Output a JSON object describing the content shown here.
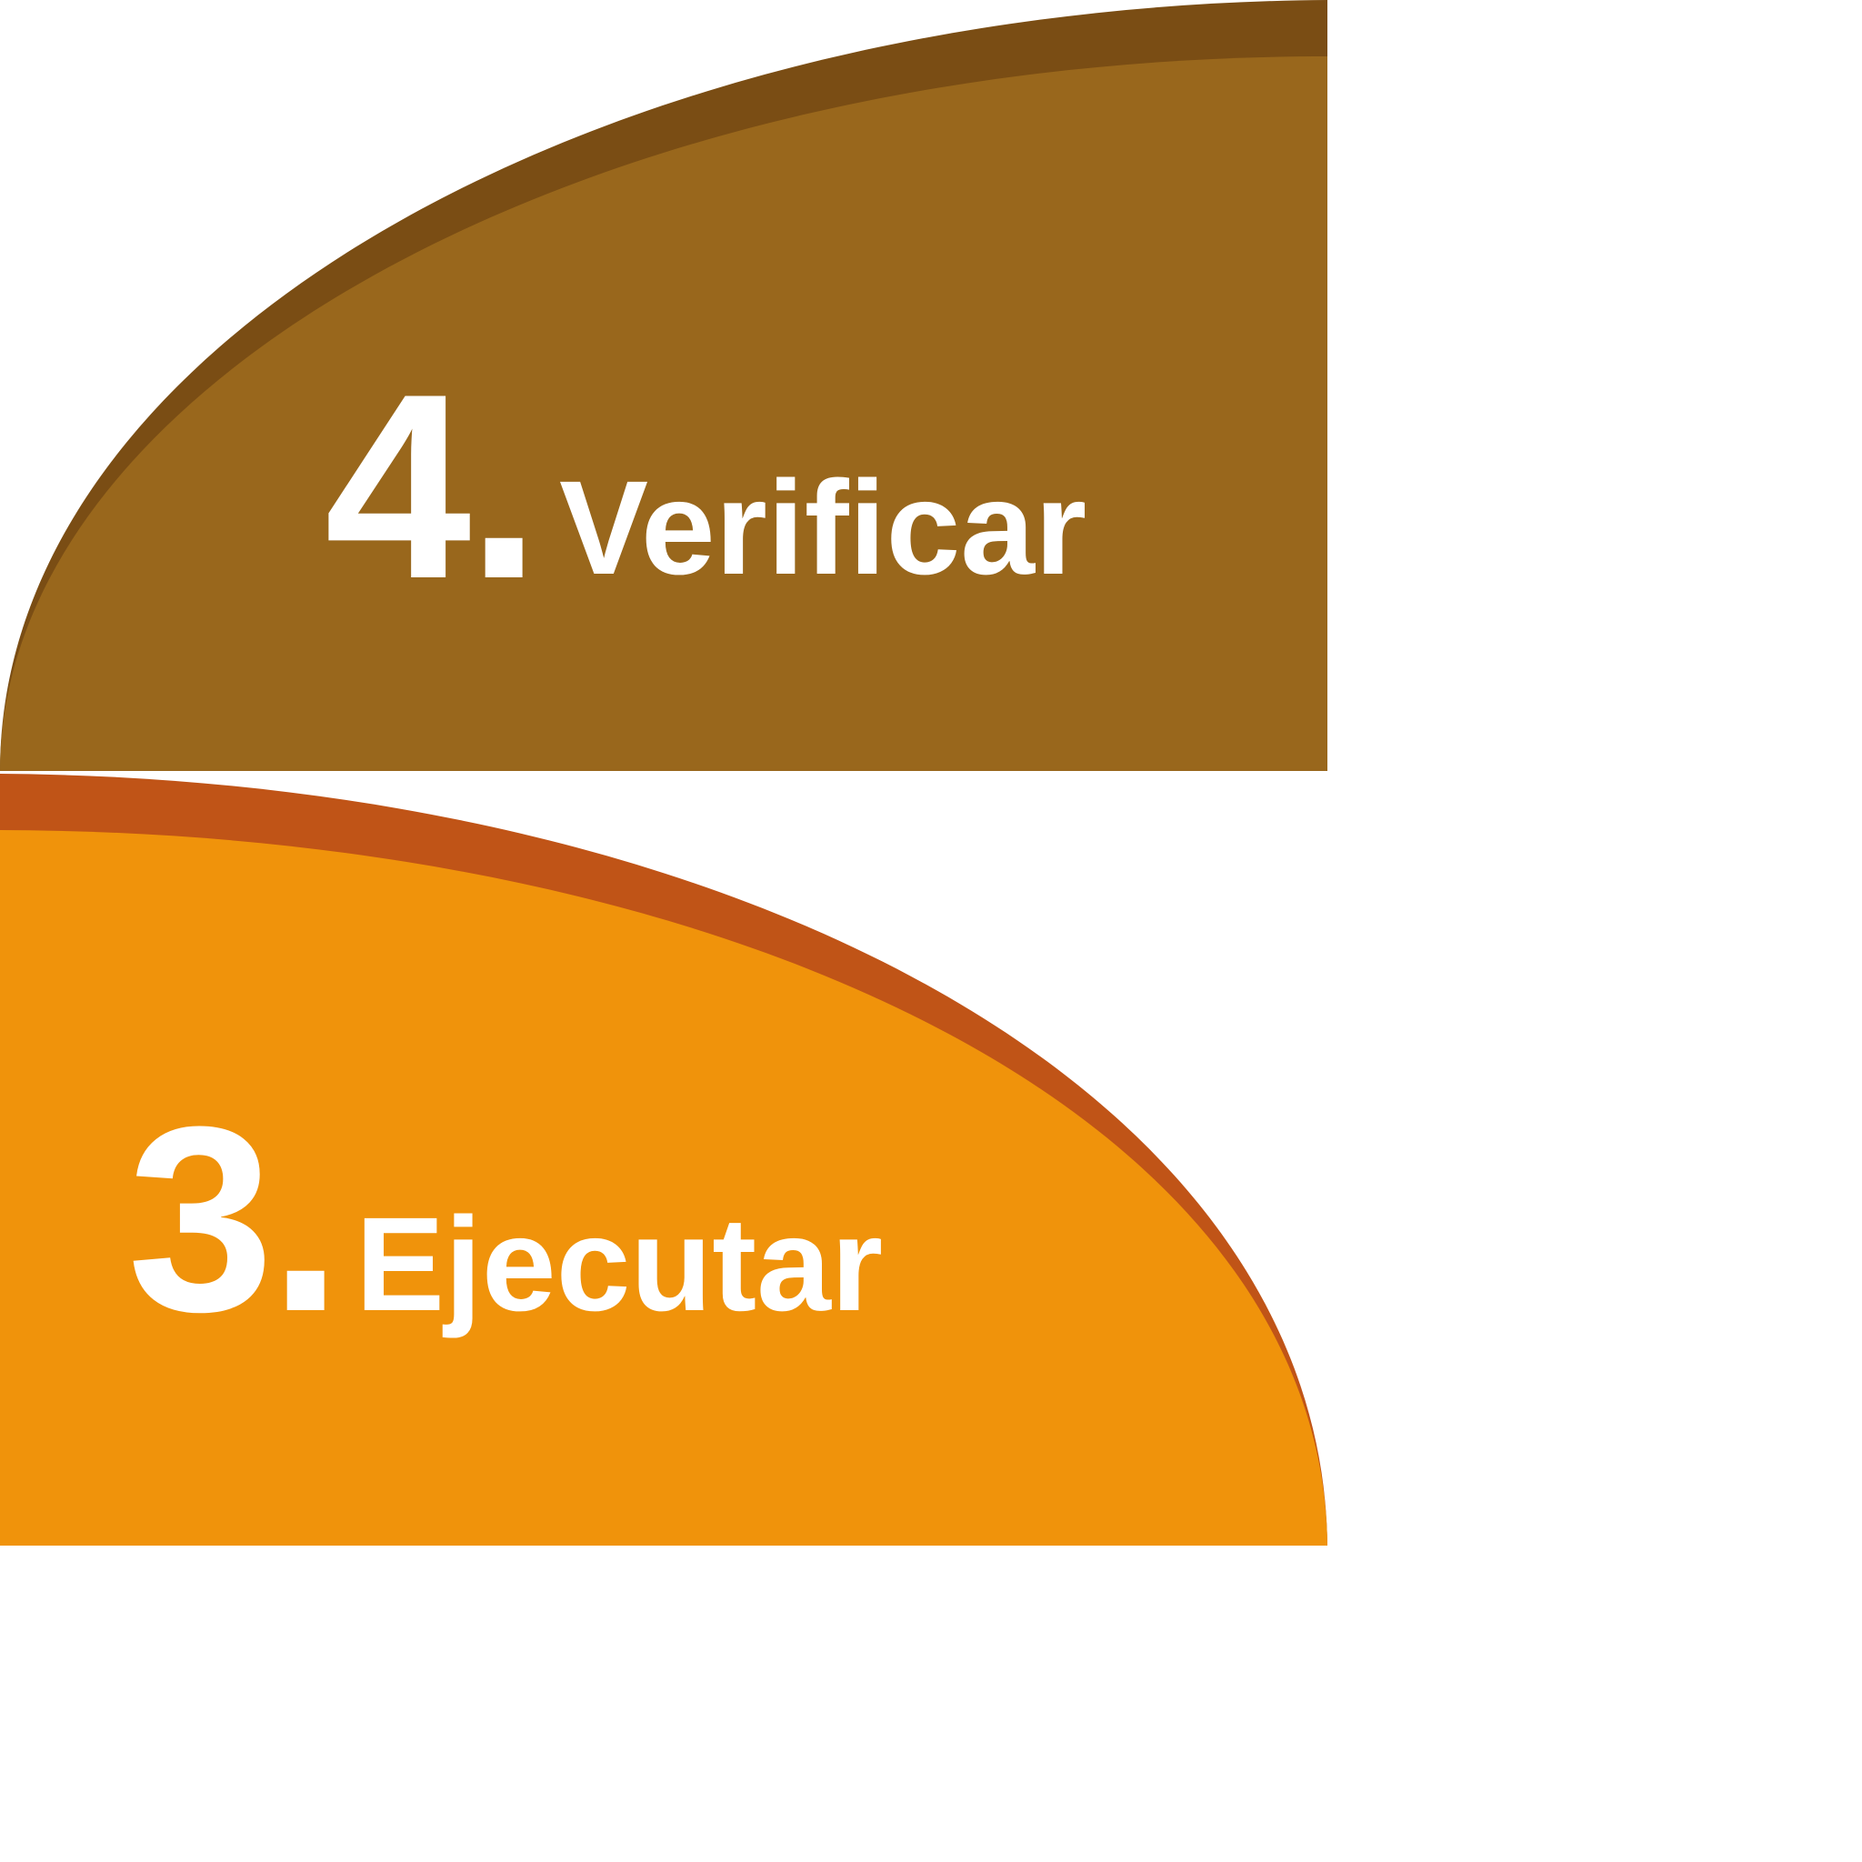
{
  "steps": [
    {
      "number": "4",
      "dot": ".",
      "label": "Verificar",
      "colors": {
        "fill": "#99671C",
        "shadow": "#7A4D14"
      }
    },
    {
      "number": "3",
      "dot": ".",
      "label": "Ejecutar",
      "colors": {
        "fill": "#F0930B",
        "shadow": "#C05417"
      }
    }
  ]
}
